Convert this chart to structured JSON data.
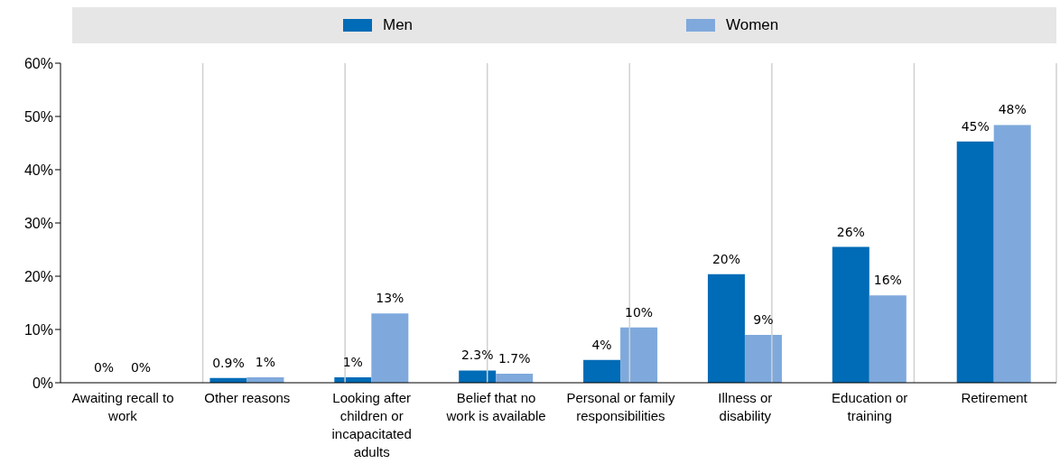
{
  "chart_data": {
    "type": "bar",
    "categories": [
      "Awaiting recall to work",
      "Other reasons",
      "Looking after children or incapacitated adults",
      "Belief that no work is available",
      "Personal or family responsibilities",
      "Illness or disability",
      "Education or training",
      "Retirement"
    ],
    "series": [
      {
        "name": "Men",
        "color": "#006bb6",
        "values": [
          0,
          0.9,
          1,
          2.3,
          4.3,
          20.4,
          25.5,
          45.3
        ],
        "value_labels": [
          "0%",
          "0.9%",
          "1%",
          "2.3%",
          "4%",
          "20%",
          "26%",
          "45%"
        ]
      },
      {
        "name": "Women",
        "color": "#7fa9dc",
        "values": [
          0,
          1,
          13,
          1.7,
          10.4,
          9,
          16.4,
          48.4
        ],
        "value_labels": [
          "0%",
          "1%",
          "13%",
          "1.7%",
          "10%",
          "9%",
          "16%",
          "48%"
        ]
      }
    ],
    "ylim": [
      0,
      60
    ],
    "yticks": [
      {
        "value": 0,
        "label": "0%"
      },
      {
        "value": 10,
        "label": "10%"
      },
      {
        "value": 20,
        "label": "20%"
      },
      {
        "value": 30,
        "label": "30%"
      },
      {
        "value": 40,
        "label": "40%"
      },
      {
        "value": 50,
        "label": "50%"
      },
      {
        "value": 60,
        "label": "60%"
      }
    ],
    "grid": "x",
    "legend": "top"
  }
}
